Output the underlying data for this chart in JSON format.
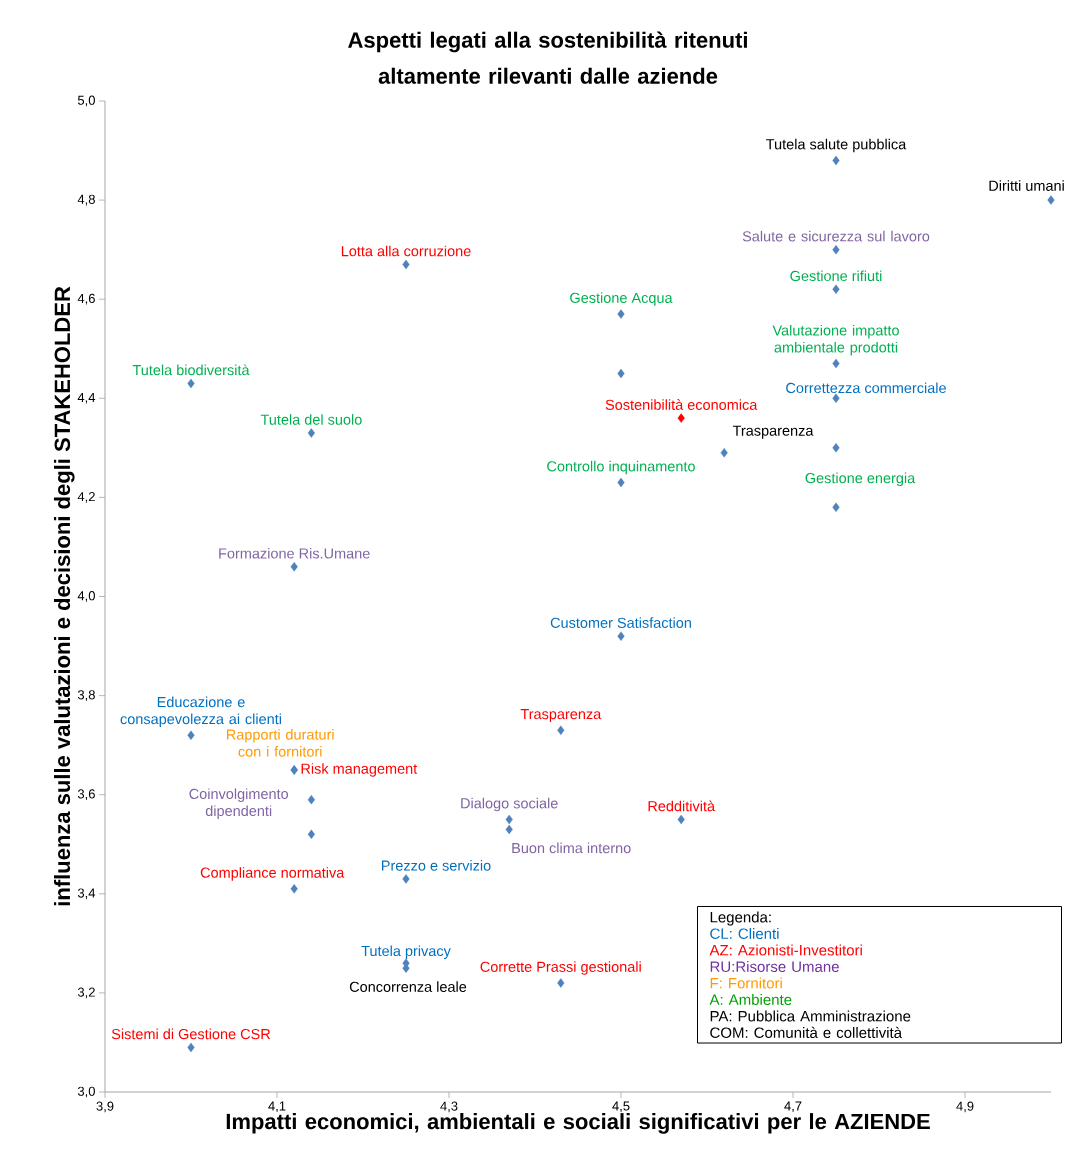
{
  "chart_data": {
    "type": "scatter",
    "title": "Aspetti legati alla sostenibilità ritenuti altamente rilevanti dalle aziende",
    "xlabel": "Impatti economici, ambientali e sociali significativi per le AZIENDE",
    "ylabel": "influenza sulle valutazioni e decisioni degli STAKEHOLDER",
    "annotations": [
      "Legenda:",
      "CL: Clienti",
      "AZ: Azionisti-Investitori",
      "RU:Risorse Umane",
      "F: Fornitori",
      "A: Ambiente",
      "PA: Pubblica Amministrazione",
      "COM: Comunità  e collettività"
    ],
    "marker": "diamond",
    "xlim": [
      3.9,
      5.0
    ],
    "ylim": [
      3.0,
      5.0
    ],
    "xticks": [
      {
        "value": 3.9,
        "label": "3,9"
      },
      {
        "value": 4.1,
        "label": "4,1"
      },
      {
        "value": 4.3,
        "label": "4,3"
      },
      {
        "value": 4.5,
        "label": "4,5"
      },
      {
        "value": 4.7,
        "label": "4,7"
      },
      {
        "value": 4.9,
        "label": "4,9"
      }
    ],
    "yticks": [
      {
        "value": 3.0,
        "label": "3,0"
      },
      {
        "value": 3.2,
        "label": "3,2"
      },
      {
        "value": 3.4,
        "label": "3,4"
      },
      {
        "value": 3.6,
        "label": "3,6"
      },
      {
        "value": 3.8,
        "label": "3,8"
      },
      {
        "value": 4.0,
        "label": "4,0"
      },
      {
        "value": 4.2,
        "label": "4,2"
      },
      {
        "value": 4.4,
        "label": "4,4"
      },
      {
        "value": 4.6,
        "label": "4,6"
      },
      {
        "value": 4.8,
        "label": "4,8"
      },
      {
        "value": 5.0,
        "label": "5,0"
      }
    ],
    "series": [
      {
        "color": "#4f81bd",
        "x": [
          4.75,
          4.0,
          4.25,
          4.25,
          4.5
        ],
        "values": [
          4.4,
          3.72,
          3.43,
          3.26,
          3.92
        ],
        "value_labels": [
          "Correttezza commerciale",
          "Educazione e consapevolezza ai clienti",
          "Prezzo e servizio",
          "Tutela privacy",
          "Customer Satisfaction"
        ]
      },
      {
        "colors": [
          "#4f81bd",
          "#ff0000",
          "#4f81bd",
          "#4f81bd",
          "#4f81bd",
          "#4f81bd",
          "#4f81bd",
          "#4f81bd"
        ],
        "x": [
          4.25,
          4.57,
          4.43,
          4.12,
          4.57,
          4.12,
          4.43,
          4.0
        ],
        "values": [
          4.67,
          4.36,
          3.73,
          3.65,
          3.55,
          3.41,
          3.22,
          3.09
        ],
        "value_labels": [
          "Lotta alla corruzione",
          "Sostenibilità economica",
          "Trasparenza",
          "Risk management",
          "Redditività",
          "Compliance normativa",
          "Corrette Prassi gestionali",
          "Sistemi di Gestione CSR"
        ]
      },
      {
        "color": "#4f81bd",
        "x": [
          4.75,
          4.12,
          4.14,
          4.37,
          4.37
        ],
        "values": [
          4.7,
          4.06,
          3.59,
          3.55,
          3.53
        ],
        "value_labels": [
          "Salute e sicurezza sul lavoro",
          "Formazione Ris.Umane",
          "Coinvolgimento dipendenti",
          "Dialogo sociale",
          "Buon clima interno"
        ]
      },
      {
        "color": "#4f81bd",
        "x": [
          4.12
        ],
        "values": [
          3.65
        ],
        "value_labels": [
          "Rapporti duraturi con i fornitori"
        ]
      },
      {
        "color": "#4f81bd",
        "x": [
          4.75,
          4.75,
          4.75,
          4.5,
          4.5,
          4.0,
          4.14
        ],
        "values": [
          4.62,
          4.47,
          4.18,
          4.57,
          4.23,
          4.43,
          4.33
        ],
        "value_labels": [
          "Gestione rifiuti",
          "Valutazione impatto ambientale prodotti",
          "Gestione energia",
          "Gestione Acqua",
          "Controllo inquinamento",
          "Tutela biodiversità",
          "Tutela del suolo"
        ]
      },
      {
        "color": "#4f81bd",
        "x": [
          4.75,
          4.25
        ],
        "values": [
          4.3,
          3.25
        ],
        "value_labels": [
          "Trasparenza",
          "Concorrenza leale"
        ]
      },
      {
        "color": "#4f81bd",
        "x": [
          4.75,
          5.0
        ],
        "values": [
          4.88,
          4.8
        ],
        "value_labels": [
          "Tutela salute pubblica",
          "Diritti umani"
        ]
      },
      {
        "color": "#4f81bd",
        "x": [
          4.5,
          4.62,
          4.14
        ],
        "values": [
          4.45,
          4.29,
          3.52
        ]
      }
    ]
  }
}
